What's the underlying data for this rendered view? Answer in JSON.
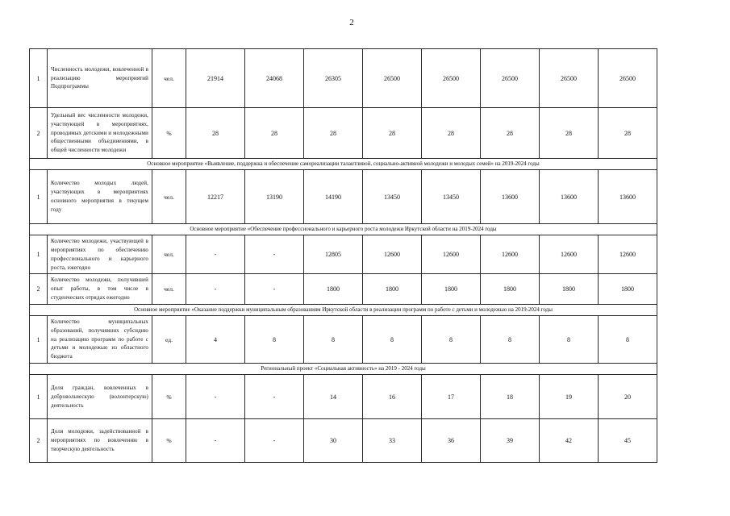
{
  "page": {
    "number": "2"
  },
  "table": {
    "rows": [
      {
        "type": "data",
        "num": "1",
        "name": "Численность молодежи, вовлеченной в реализацию мероприятий Подпрограммы",
        "unit": "чел.",
        "values": [
          "21914",
          "24068",
          "26305",
          "26500",
          "26500",
          "26500",
          "26500",
          "26500"
        ]
      },
      {
        "type": "data",
        "num": "2",
        "name": "Удельный вес численности молодежи, участвующей в мероприятиях, проводимых детскими и молодежными общественными объединениями, в общей численности молодежи",
        "unit": "%",
        "values": [
          "28",
          "28",
          "28",
          "28",
          "28",
          "28",
          "28",
          "28"
        ]
      },
      {
        "type": "section",
        "label": "Основное мероприятие «Выявление, поддержка и обеспечение самореализации талантливой, социально-активной молодежи и молодых семей» на 2019-2024 годы"
      },
      {
        "type": "data",
        "num": "1",
        "name": "Количество молодых людей, участвующих в мероприятиях основного мероприятия в текущем году",
        "unit": "чел.",
        "values": [
          "12217",
          "13190",
          "14190",
          "13450",
          "13450",
          "13600",
          "13600",
          "13600"
        ]
      },
      {
        "type": "section",
        "label": "Основное мероприятие «Обеспечение профессионального и карьерного роста молодежи Иркутской области на 2019-2024 годы"
      },
      {
        "type": "data",
        "num": "1",
        "name": "Количество молодежи, участвующей в мероприятиях по обеспечению профессионального и карьерного роста, ежегодно",
        "unit": "чел.",
        "values": [
          "-",
          "-",
          "12805",
          "12600",
          "12600",
          "12600",
          "12600",
          "12600"
        ]
      },
      {
        "type": "data",
        "num": "2",
        "name": "Количество молодежи, получившей опыт работы, в том числе в студенческих отрядах ежегодно",
        "unit": "чел.",
        "values": [
          "-",
          "-",
          "1800",
          "1800",
          "1800",
          "1800",
          "1800",
          "1800"
        ]
      },
      {
        "type": "section",
        "label": "Основное мероприятие «Оказание поддержки муниципальным образованиям Иркутской области в реализации программ по работе с детьми и молодежью на 2019-2024 годы"
      },
      {
        "type": "data",
        "num": "1",
        "name": "Количество муниципальных образований, получивших субсидию на реализацию программ по работе с детьми и молодежью из областного бюджета",
        "unit": "ед.",
        "values": [
          "4",
          "8",
          "8",
          "8",
          "8",
          "8",
          "8",
          "8"
        ]
      },
      {
        "type": "section",
        "label": "Региональный проект «Социальная активность» на 2019 - 2024 годы"
      },
      {
        "type": "data",
        "num": "1",
        "name": "Доля граждан, вовлеченных в добровольческую (волонтерскую) деятельность",
        "unit": "%",
        "values": [
          "-",
          "-",
          "14",
          "16",
          "17",
          "18",
          "19",
          "20"
        ]
      },
      {
        "type": "data",
        "num": "2",
        "name": "Доля молодежи, задействованной в мероприятиях по вовлечению в творческую деятельность",
        "unit": "%",
        "values": [
          "-",
          "-",
          "30",
          "33",
          "36",
          "39",
          "42",
          "45"
        ]
      }
    ]
  }
}
